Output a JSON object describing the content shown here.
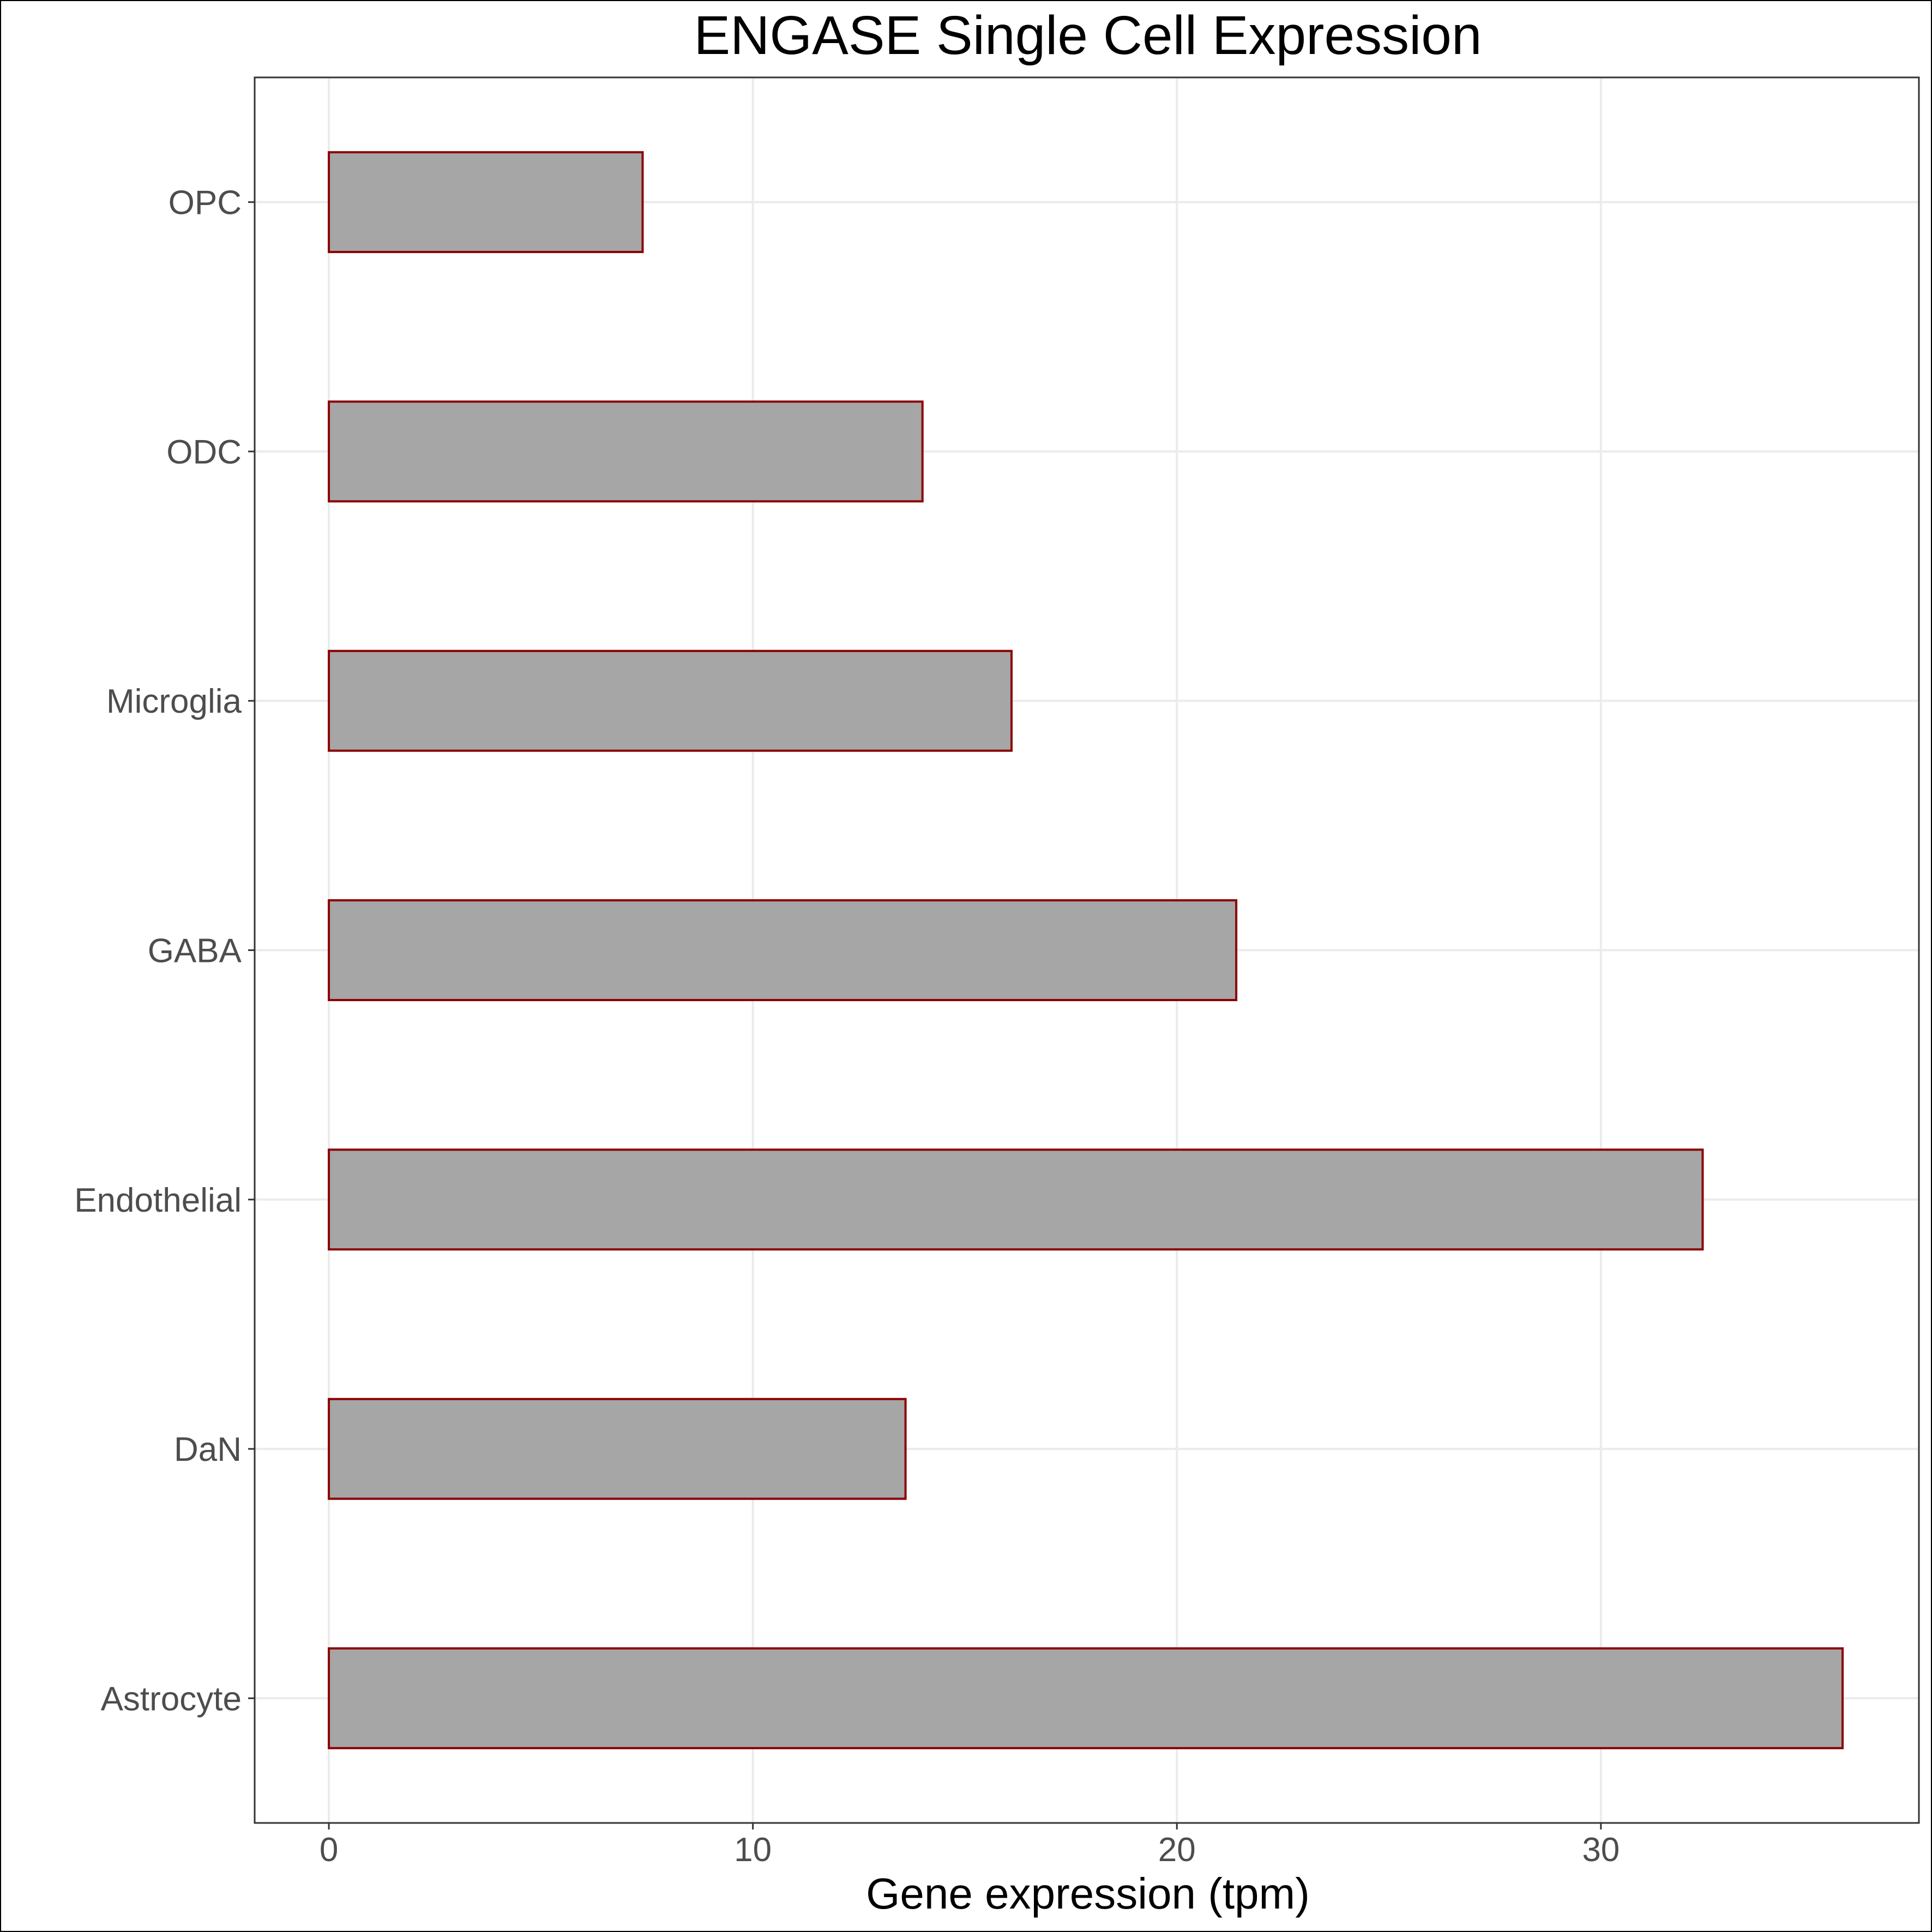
{
  "chart_data": {
    "type": "bar",
    "orientation": "horizontal",
    "title": "ENGASE Single Cell Expression",
    "xlabel": "Gene expression (tpm)",
    "ylabel": "",
    "categories": [
      "Astrocyte",
      "DaN",
      "Endothelial",
      "GABA",
      "Microglia",
      "ODC",
      "OPC"
    ],
    "values": [
      35.7,
      13.6,
      32.4,
      21.4,
      16.1,
      14.0,
      7.4
    ],
    "xlim": [
      -1.75,
      37.5
    ],
    "xticks": [
      0,
      10,
      20,
      30
    ],
    "grid": true,
    "colors": {
      "bar_fill": "#a6a6a6",
      "bar_stroke": "#8b0000",
      "grid": "#ebebeb",
      "panel_border": "#333333"
    }
  }
}
